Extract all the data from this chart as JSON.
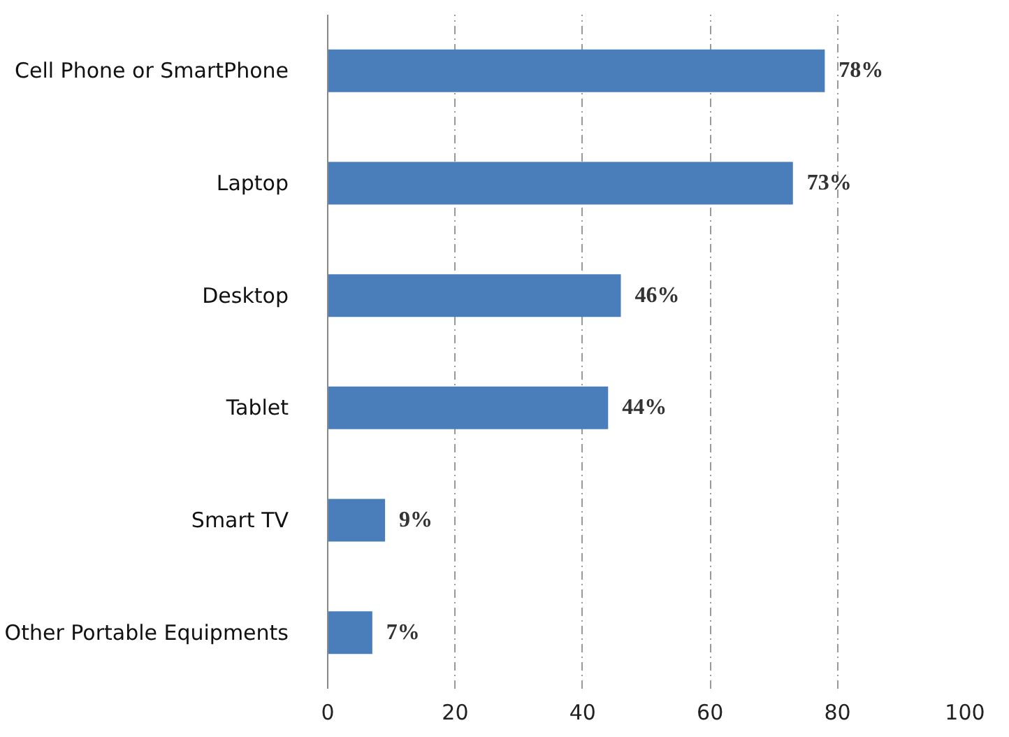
{
  "chart_data": {
    "type": "bar",
    "orientation": "horizontal",
    "categories": [
      "Cell Phone or SmartPhone",
      "Laptop",
      "Desktop",
      "Tablet",
      "Smart TV",
      "Other Portable Equipments"
    ],
    "values": [
      78,
      73,
      46,
      44,
      9,
      7
    ],
    "value_labels": [
      "78%",
      "73%",
      "46%",
      "44%",
      "9%",
      "7%"
    ],
    "color": "#4a7ebb",
    "xlim": [
      0,
      100
    ],
    "xticks": [
      0,
      20,
      40,
      60,
      80,
      100
    ],
    "grid": "x"
  }
}
